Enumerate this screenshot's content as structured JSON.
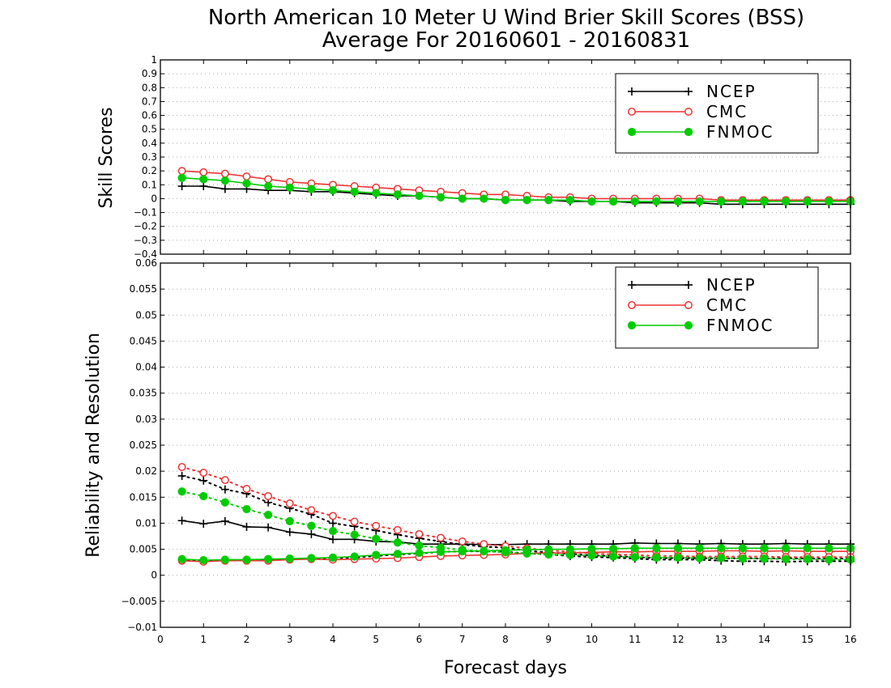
{
  "title_line1": "North American 10 Meter U Wind Brier Skill Scores (BSS)",
  "title_line2": "Average For 20160601 - 20160831",
  "xlabel": "Forecast days",
  "colors": {
    "NCEP": "#000000",
    "CMC": "#ee3333",
    "FNMOC": "#00cc00"
  },
  "chart_data": [
    {
      "type": "line",
      "ylabel": "Skill Scores",
      "xlim": [
        0,
        16
      ],
      "ylim": [
        -0.4,
        1
      ],
      "xticks": [
        "0",
        "1",
        "2",
        "3",
        "4",
        "5",
        "6",
        "7",
        "8",
        "9",
        "10",
        "11",
        "12",
        "13",
        "14",
        "15",
        "16"
      ],
      "yticks": [
        "-0.4",
        "-0.3",
        "-0.2",
        "-0.1",
        "0",
        "0.1",
        "0.2",
        "0.3",
        "0.4",
        "0.5",
        "0.6",
        "0.7",
        "0.8",
        "0.9",
        "1"
      ],
      "grid": true,
      "legend_position": "top-right",
      "x": [
        0.5,
        1,
        1.5,
        2,
        2.5,
        3,
        3.5,
        4,
        4.5,
        5,
        5.5,
        6,
        6.5,
        7,
        7.5,
        8,
        8.5,
        9,
        9.5,
        10,
        10.5,
        11,
        11.5,
        12,
        12.5,
        13,
        13.5,
        14,
        14.5,
        15,
        15.5,
        16
      ],
      "series": [
        {
          "name": "NCEP",
          "marker": "plus",
          "line": "solid",
          "values": [
            0.09,
            0.09,
            0.07,
            0.07,
            0.06,
            0.06,
            0.05,
            0.05,
            0.04,
            0.03,
            0.02,
            0.02,
            0.01,
            0.0,
            0.0,
            -0.01,
            -0.01,
            -0.01,
            -0.02,
            -0.02,
            -0.02,
            -0.03,
            -0.03,
            -0.03,
            -0.03,
            -0.04,
            -0.04,
            -0.04,
            -0.04,
            -0.04,
            -0.04,
            -0.04
          ]
        },
        {
          "name": "CMC",
          "marker": "open-circle",
          "line": "solid",
          "values": [
            0.2,
            0.19,
            0.18,
            0.16,
            0.14,
            0.12,
            0.11,
            0.1,
            0.09,
            0.08,
            0.07,
            0.06,
            0.05,
            0.04,
            0.03,
            0.03,
            0.02,
            0.01,
            0.01,
            0.0,
            0.0,
            0.0,
            0.0,
            0.0,
            0.0,
            -0.01,
            -0.01,
            -0.01,
            -0.01,
            -0.01,
            -0.01,
            -0.01
          ]
        },
        {
          "name": "FNMOC",
          "marker": "filled-circle",
          "line": "solid",
          "values": [
            0.15,
            0.14,
            0.13,
            0.11,
            0.09,
            0.08,
            0.07,
            0.06,
            0.05,
            0.04,
            0.03,
            0.02,
            0.01,
            0.0,
            0.0,
            -0.01,
            -0.01,
            -0.01,
            -0.01,
            -0.02,
            -0.02,
            -0.02,
            -0.02,
            -0.02,
            -0.02,
            -0.02,
            -0.02,
            -0.02,
            -0.02,
            -0.02,
            -0.02,
            -0.02
          ]
        }
      ]
    },
    {
      "type": "line",
      "ylabel": "Reliability and Resolution",
      "xlim": [
        0,
        16
      ],
      "ylim": [
        -0.01,
        0.06
      ],
      "xticks": [
        "0",
        "1",
        "2",
        "3",
        "4",
        "5",
        "6",
        "7",
        "8",
        "9",
        "10",
        "11",
        "12",
        "13",
        "14",
        "15",
        "16"
      ],
      "yticks": [
        "-0.01",
        "-0.005",
        "0",
        "0.005",
        "0.01",
        "0.015",
        "0.02",
        "0.025",
        "0.03",
        "0.035",
        "0.04",
        "0.045",
        "0.05",
        "0.055",
        "0.06"
      ],
      "grid": true,
      "legend_position": "top-right",
      "x": [
        0.5,
        1,
        1.5,
        2,
        2.5,
        3,
        3.5,
        4,
        4.5,
        5,
        5.5,
        6,
        6.5,
        7,
        7.5,
        8,
        8.5,
        9,
        9.5,
        10,
        10.5,
        11,
        11.5,
        12,
        12.5,
        13,
        13.5,
        14,
        14.5,
        15,
        15.5,
        16
      ],
      "series": [
        {
          "name": "NCEP",
          "marker": "plus",
          "line": "solid",
          "values": [
            0.0105,
            0.0099,
            0.0104,
            0.0093,
            0.0092,
            0.0083,
            0.0079,
            0.0069,
            0.0069,
            0.0065,
            0.0064,
            0.006,
            0.006,
            0.006,
            0.0059,
            0.0059,
            0.006,
            0.006,
            0.006,
            0.006,
            0.006,
            0.0062,
            0.0061,
            0.0061,
            0.006,
            0.0061,
            0.006,
            0.006,
            0.0061,
            0.006,
            0.006,
            0.006
          ]
        },
        {
          "name": "NCEP",
          "marker": "plus",
          "line": "dotted",
          "values": [
            0.0029,
            0.0028,
            0.0029,
            0.0029,
            0.003,
            0.0031,
            0.0032,
            0.0033,
            0.0034,
            0.0037,
            0.004,
            0.0042,
            0.0045,
            0.0046,
            0.0046,
            0.0045,
            0.0042,
            0.004,
            0.0037,
            0.0035,
            0.0034,
            0.0032,
            0.003,
            0.003,
            0.003,
            0.0028,
            0.0027,
            0.0027,
            0.0026,
            0.0027,
            0.0027,
            0.0027
          ]
        },
        {
          "name": "NCEP",
          "marker": "plus",
          "line": "dotted",
          "values": [
            0.0191,
            0.0182,
            0.0165,
            0.0157,
            0.014,
            0.0129,
            0.0117,
            0.01,
            0.0094,
            0.0086,
            0.0078,
            0.0071,
            0.0065,
            0.0059,
            0.0055,
            0.0053,
            0.0047,
            0.0044,
            0.0041,
            0.0038,
            0.0037,
            0.0035,
            0.0033,
            0.0033,
            0.0033,
            0.0032,
            0.0033,
            0.0032,
            0.0033,
            0.0032,
            0.0032,
            0.0032
          ]
        },
        {
          "name": "CMC",
          "marker": "open-circle",
          "line": "solid",
          "values": [
            0.0028,
            0.0026,
            0.0028,
            0.0028,
            0.0028,
            0.003,
            0.0031,
            0.003,
            0.0031,
            0.0032,
            0.0033,
            0.0035,
            0.0037,
            0.0038,
            0.0039,
            0.004,
            0.0042,
            0.0043,
            0.0043,
            0.0044,
            0.0045,
            0.0045,
            0.0046,
            0.0046,
            0.0046,
            0.0047,
            0.0047,
            0.0046,
            0.0047,
            0.0046,
            0.0046,
            0.0046
          ]
        },
        {
          "name": "CMC",
          "marker": "open-circle",
          "line": "dotted",
          "values": [
            0.0208,
            0.0197,
            0.0183,
            0.0166,
            0.0152,
            0.0138,
            0.0125,
            0.0114,
            0.0103,
            0.0095,
            0.0087,
            0.0079,
            0.0072,
            0.0065,
            0.006,
            0.0056,
            0.0052,
            0.0048,
            0.0045,
            0.0042,
            0.004,
            0.0039,
            0.0037,
            0.0037,
            0.0036,
            0.0036,
            0.0036,
            0.0036,
            0.0035,
            0.0035,
            0.0035,
            0.0035
          ]
        },
        {
          "name": "FNMOC",
          "marker": "filled-circle",
          "line": "solid",
          "values": [
            0.0031,
            0.0029,
            0.003,
            0.003,
            0.0031,
            0.0032,
            0.0033,
            0.0034,
            0.0036,
            0.0039,
            0.0041,
            0.0043,
            0.0045,
            0.0046,
            0.0047,
            0.0048,
            0.0049,
            0.005,
            0.005,
            0.0051,
            0.0051,
            0.0052,
            0.0052,
            0.0052,
            0.0052,
            0.0052,
            0.0052,
            0.0052,
            0.0052,
            0.0052,
            0.0052,
            0.0052
          ]
        },
        {
          "name": "FNMOC",
          "marker": "filled-circle",
          "line": "dotted",
          "values": [
            0.0161,
            0.0152,
            0.014,
            0.0127,
            0.0116,
            0.0104,
            0.0095,
            0.0085,
            0.0078,
            0.007,
            0.0063,
            0.0057,
            0.0053,
            0.0049,
            0.0046,
            0.0044,
            0.0042,
            0.004,
            0.0039,
            0.0038,
            0.0036,
            0.0035,
            0.0034,
            0.0034,
            0.0033,
            0.0033,
            0.0032,
            0.0032,
            0.0031,
            0.0031,
            0.003,
            0.003
          ]
        }
      ]
    }
  ]
}
